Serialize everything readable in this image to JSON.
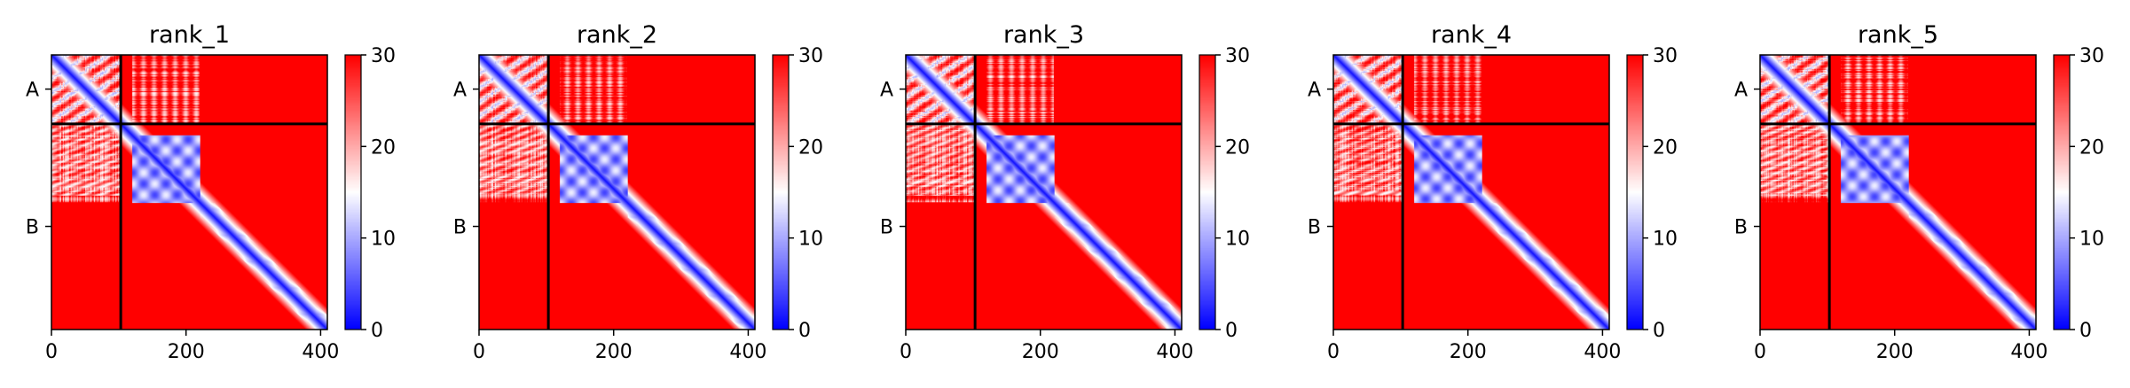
{
  "chart_data": {
    "type": "heatmap",
    "description_units": "residue index",
    "colormap": {
      "low_color": "#0000ff",
      "mid_color": "#ffffff",
      "high_color": "#ff0000",
      "vmin": 0,
      "vmax": 30,
      "ticks": [
        0,
        10,
        20,
        30
      ]
    },
    "shared_axes": {
      "x_ticks": [
        0,
        200,
        400
      ],
      "xlim": [
        0,
        410
      ],
      "ylim": [
        0,
        410
      ],
      "chain_boundary": 103,
      "chain_labels": [
        "A",
        "B"
      ],
      "chain_label_positions": [
        51,
        256
      ]
    },
    "panels": [
      {
        "title": "rank_1"
      },
      {
        "title": "rank_2"
      },
      {
        "title": "rank_3"
      },
      {
        "title": "rank_4"
      },
      {
        "title": "rank_5"
      }
    ]
  }
}
